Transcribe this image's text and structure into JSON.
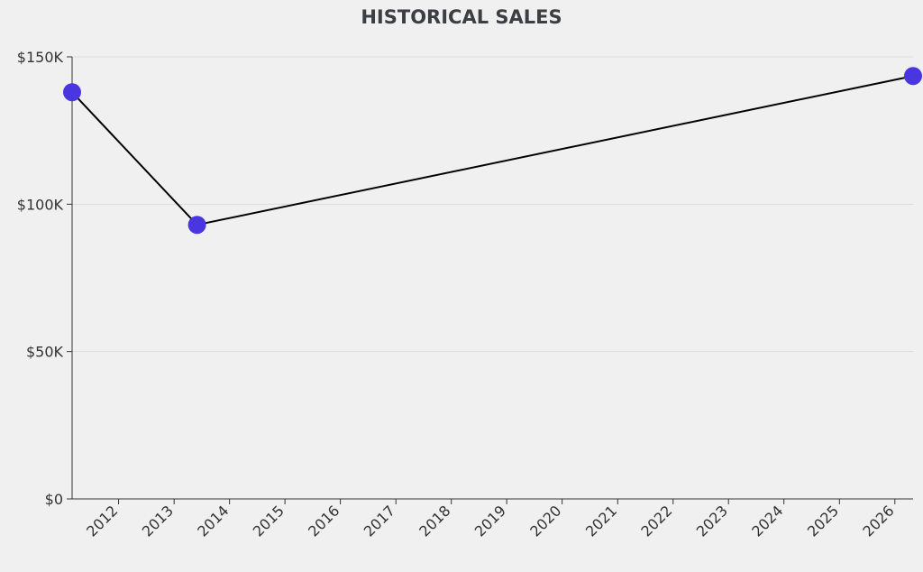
{
  "chart_data": {
    "type": "line",
    "title": "HISTORICAL SALES",
    "xlabel": "",
    "ylabel": "",
    "x_ticks": [
      "2012",
      "2013",
      "2014",
      "2015",
      "2016",
      "2017",
      "2018",
      "2019",
      "2020",
      "2021",
      "2022",
      "2023",
      "2024",
      "2025",
      "2026"
    ],
    "y_ticks": [
      0,
      50000,
      100000,
      150000
    ],
    "y_tick_labels": [
      "$0",
      "$50K",
      "$100K",
      "$150K"
    ],
    "ylim": [
      0,
      150000
    ],
    "xlim": [
      "2011-03-01",
      "2026-05-01"
    ],
    "grid": "horizontal",
    "colors": {
      "point": "#4a36e0",
      "line": "#000000",
      "grid": "#dcdcdc"
    },
    "series": [
      {
        "points": [
          {
            "x": "2011-03-01",
            "y": 138000
          },
          {
            "x": "2013-06-01",
            "y": 93000
          },
          {
            "x": "2026-05-01",
            "y": 143500
          }
        ]
      }
    ]
  }
}
